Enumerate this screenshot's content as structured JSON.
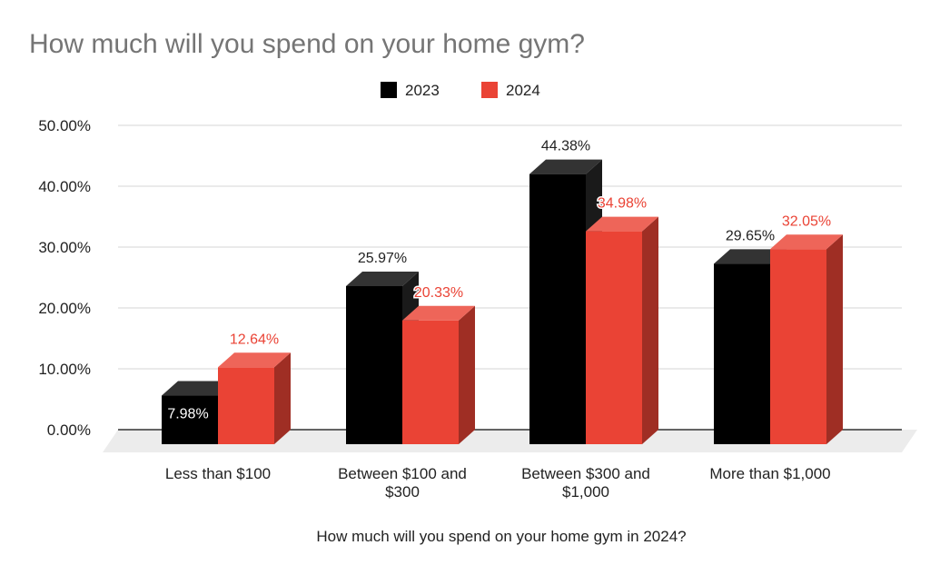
{
  "chart_data": {
    "type": "bar",
    "title": "How much will you spend on your home gym?",
    "xlabel": "How much will you spend on your home gym in 2024?",
    "ylabel": "",
    "ylim": [
      0,
      50
    ],
    "ytick_values": [
      0,
      10,
      20,
      30,
      40,
      50
    ],
    "ytick_labels": [
      "0.00%",
      "10.00%",
      "20.00%",
      "30.00%",
      "40.00%",
      "50.00%"
    ],
    "categories": [
      [
        "Less than $100"
      ],
      [
        "Between $100 and",
        "$300"
      ],
      [
        "Between $300 and",
        "$1,000"
      ],
      [
        "More than $1,000"
      ]
    ],
    "series": [
      {
        "name": "2023",
        "color": "#000000",
        "label_color": "#222222",
        "values": [
          7.98,
          25.97,
          44.38,
          29.65
        ],
        "labels": [
          "7.98%",
          "25.97%",
          "44.38%",
          "29.65%"
        ]
      },
      {
        "name": "2024",
        "color": "#ea4335",
        "label_color": "#ea4335",
        "values": [
          12.64,
          20.33,
          34.98,
          32.05
        ],
        "labels": [
          "12.64%",
          "20.33%",
          "34.98%",
          "32.05%"
        ]
      }
    ],
    "grid": true,
    "legend_position": "top-center",
    "style": "3d"
  }
}
